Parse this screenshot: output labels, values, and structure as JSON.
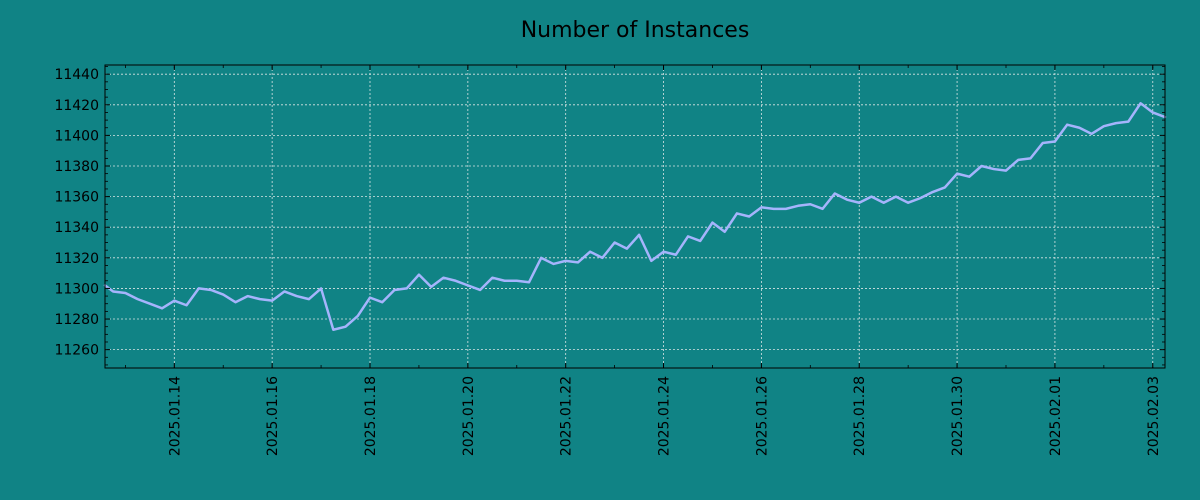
{
  "chart_data": {
    "type": "line",
    "title": "Number of Instances",
    "xlabel": "",
    "ylabel": "",
    "x_range": [
      "2025.01.12 14:00",
      "2025.02.03 06:00"
    ],
    "ylim": [
      11248,
      11446
    ],
    "x_ticks": [
      "2025.01.14",
      "2025.01.16",
      "2025.01.18",
      "2025.01.20",
      "2025.01.22",
      "2025.01.24",
      "2025.01.26",
      "2025.01.28",
      "2025.01.30",
      "2025.02.01",
      "2025.02.03"
    ],
    "y_ticks": [
      11260,
      11280,
      11300,
      11320,
      11340,
      11360,
      11380,
      11400,
      11420,
      11440
    ],
    "grid": true,
    "series": [
      {
        "x": [
          "2025.01.12 14:00",
          "2025.01.12 18:00",
          "2025.01.13 00:00",
          "2025.01.13 06:00",
          "2025.01.13 12:00",
          "2025.01.13 18:00",
          "2025.01.14 00:00",
          "2025.01.14 06:00",
          "2025.01.14 12:00",
          "2025.01.14 18:00",
          "2025.01.15 00:00",
          "2025.01.15 06:00",
          "2025.01.15 12:00",
          "2025.01.15 18:00",
          "2025.01.16 00:00",
          "2025.01.16 06:00",
          "2025.01.16 12:00",
          "2025.01.16 18:00",
          "2025.01.17 00:00",
          "2025.01.17 06:00",
          "2025.01.17 12:00",
          "2025.01.17 18:00",
          "2025.01.18 00:00",
          "2025.01.18 06:00",
          "2025.01.18 12:00",
          "2025.01.18 18:00",
          "2025.01.19 00:00",
          "2025.01.19 06:00",
          "2025.01.19 12:00",
          "2025.01.19 18:00",
          "2025.01.20 00:00",
          "2025.01.20 06:00",
          "2025.01.20 12:00",
          "2025.01.20 18:00",
          "2025.01.21 00:00",
          "2025.01.21 06:00",
          "2025.01.21 12:00",
          "2025.01.21 18:00",
          "2025.01.22 00:00",
          "2025.01.22 06:00",
          "2025.01.22 12:00",
          "2025.01.22 18:00",
          "2025.01.23 00:00",
          "2025.01.23 06:00",
          "2025.01.23 12:00",
          "2025.01.23 18:00",
          "2025.01.24 00:00",
          "2025.01.24 06:00",
          "2025.01.24 12:00",
          "2025.01.24 18:00",
          "2025.01.25 00:00",
          "2025.01.25 06:00",
          "2025.01.25 12:00",
          "2025.01.25 18:00",
          "2025.01.26 00:00",
          "2025.01.26 06:00",
          "2025.01.26 12:00",
          "2025.01.26 18:00",
          "2025.01.27 00:00",
          "2025.01.27 06:00",
          "2025.01.27 12:00",
          "2025.01.27 18:00",
          "2025.01.28 00:00",
          "2025.01.28 06:00",
          "2025.01.28 12:00",
          "2025.01.28 18:00",
          "2025.01.29 00:00",
          "2025.01.29 06:00",
          "2025.01.29 12:00",
          "2025.01.29 18:00",
          "2025.01.30 00:00",
          "2025.01.30 06:00",
          "2025.01.30 12:00",
          "2025.01.30 18:00",
          "2025.01.31 00:00",
          "2025.01.31 06:00",
          "2025.01.31 12:00",
          "2025.01.31 18:00",
          "2025.02.01 00:00",
          "2025.02.01 06:00",
          "2025.02.01 12:00",
          "2025.02.01 18:00",
          "2025.02.02 00:00",
          "2025.02.02 06:00",
          "2025.02.02 12:00",
          "2025.02.02 18:00",
          "2025.02.03 00:00",
          "2025.02.03 06:00"
        ],
        "y": [
          11302,
          11298,
          11297,
          11293,
          11290,
          11287,
          11292,
          11289,
          11300,
          11299,
          11296,
          11291,
          11295,
          11293,
          11292,
          11298,
          11295,
          11293,
          11300,
          11273,
          11275,
          11282,
          11294,
          11291,
          11299,
          11300,
          11309,
          11301,
          11307,
          11305,
          11302,
          11299,
          11307,
          11305,
          11305,
          11304,
          11320,
          11316,
          11318,
          11317,
          11324,
          11320,
          11330,
          11326,
          11335,
          11318,
          11324,
          11322,
          11334,
          11331,
          11343,
          11337,
          11349,
          11347,
          11353,
          11352,
          11352,
          11354,
          11355,
          11352,
          11362,
          11358,
          11356,
          11360,
          11356,
          11360,
          11356,
          11359,
          11363,
          11366,
          11375,
          11373,
          11380,
          11378,
          11377,
          11384,
          11385,
          11395,
          11396,
          11407,
          11405,
          11401,
          11406,
          11408,
          11409,
          11421,
          11415,
          11412
        ]
      }
    ]
  },
  "style": {
    "background": "#108385",
    "line_color": "#a5b4fc",
    "axis_color": "#000000",
    "grid_color": "#d8e4e4"
  }
}
